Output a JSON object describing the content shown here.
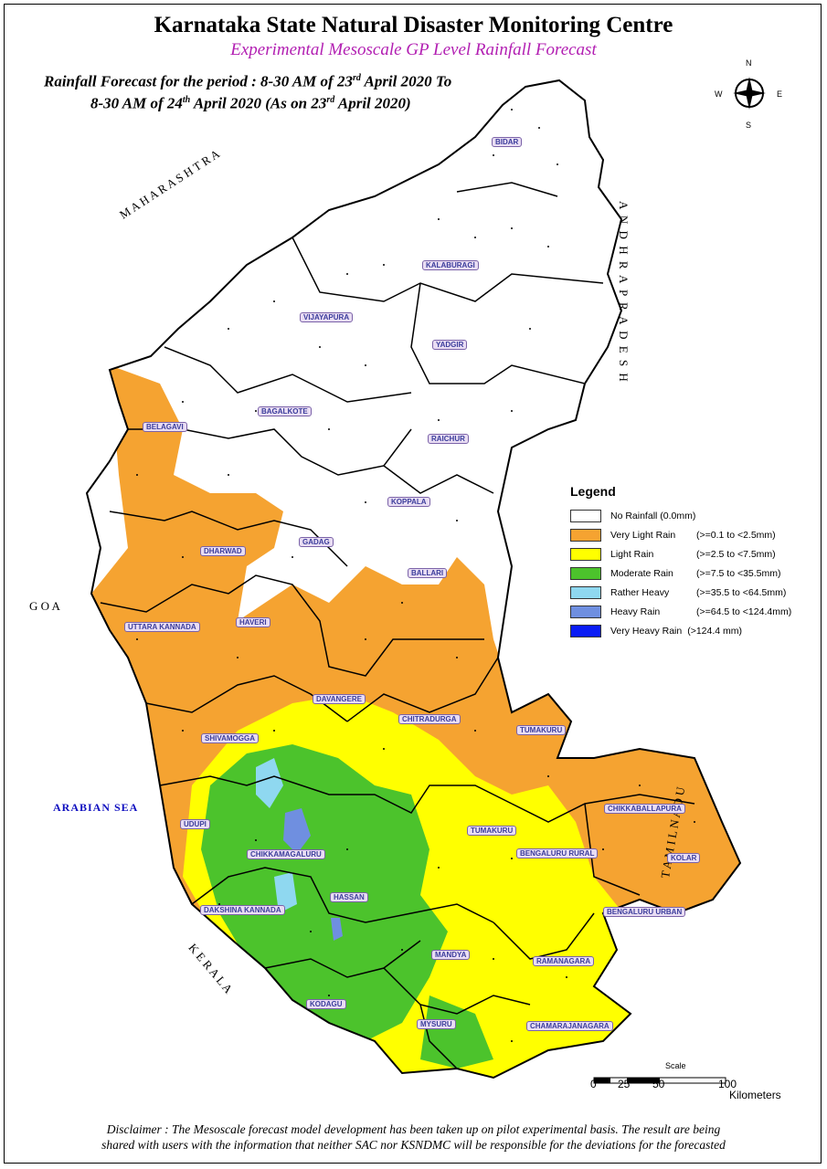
{
  "header": {
    "title": "Karnataka State Natural Disaster Monitoring Centre",
    "subtitle": "Experimental Mesoscale GP Level Rainfall Forecast",
    "period_line1_a": "Rainfall Forecast for the period : 8-30 AM of 23",
    "period_line1_sup": "rd",
    "period_line1_b": " April 2020 To",
    "period_line2_a": "8-30 AM of 24",
    "period_line2_sup": "th",
    "period_line2_b": " April 2020 (As on 23",
    "period_line2_sup2": "rd",
    "period_line2_c": " April 2020)"
  },
  "compass": {
    "n": "N",
    "s": "S",
    "e": "E",
    "w": "W"
  },
  "legend": {
    "title": "Legend",
    "items": [
      {
        "name": "No Rainfall (0.0mm)",
        "range": "",
        "color": "#ffffff"
      },
      {
        "name": "Very Light Rain",
        "range": "(>=0.1 to <2.5mm)",
        "color": "#f5a331"
      },
      {
        "name": " Light Rain",
        "range": "(>=2.5 to <7.5mm)",
        "color": "#ffff00"
      },
      {
        "name": "Moderate Rain",
        "range": "(>=7.5 to <35.5mm)",
        "color": "#4cc32c"
      },
      {
        "name": "Rather Heavy",
        "range": "(>=35.5 to <64.5mm)",
        "color": "#8fd8f0"
      },
      {
        "name": "Heavy Rain",
        "range": "(>=64.5 to <124.4mm)",
        "color": "#6f8fe0"
      },
      {
        "name": "Very Heavy Rain",
        "range": "(>124.4 mm)",
        "color": "#0a1cf5"
      }
    ]
  },
  "surroundings": {
    "sea": "ARABIAN SEA",
    "goa": "G O A",
    "maharashtra": "M A H A R A S H T R A",
    "andhra": "A N D H R A   P R A D E S H",
    "tamilnadu": "T A M I L N A D U",
    "kerala": "K E R A L A"
  },
  "districts": [
    "BIDAR",
    "KALABURAGI",
    "VIJAYAPURA",
    "YADGIR",
    "BAGALKOTE",
    "BELAGAVI",
    "RAICHUR",
    "KOPPALA",
    "GADAG",
    "DHARWAD",
    "BALLARI",
    "HAVERI",
    "UTTARA KANNADA",
    "DAVANGERE",
    "CHITRADURGA",
    "TUMAKURU",
    "SHIVAMOGGA",
    "UDUPI",
    "CHIKKAMAGALURU",
    "TUMAKURU",
    "CHIKKABALLAPURA",
    "BENGALURU RURAL",
    "KOLAR",
    "HASSAN",
    "DAKSHINA KANNADA",
    "BENGALURU URBAN",
    "MANDYA",
    "RAMANAGARA",
    "KODAGU",
    "MYSURU",
    "CHAMARAJANAGARA"
  ],
  "scale": {
    "title": "Scale",
    "ticks": [
      "0",
      "25",
      "50",
      "100"
    ],
    "unit": "Kilometers"
  },
  "disclaimer": {
    "line1": "Disclaimer : The Mesoscale forecast model development has been taken up on pilot experimental basis. The result are being",
    "line2": "shared with users with the information that neither SAC nor KSNDMC will be responsible  for the deviations for the forecasted"
  }
}
